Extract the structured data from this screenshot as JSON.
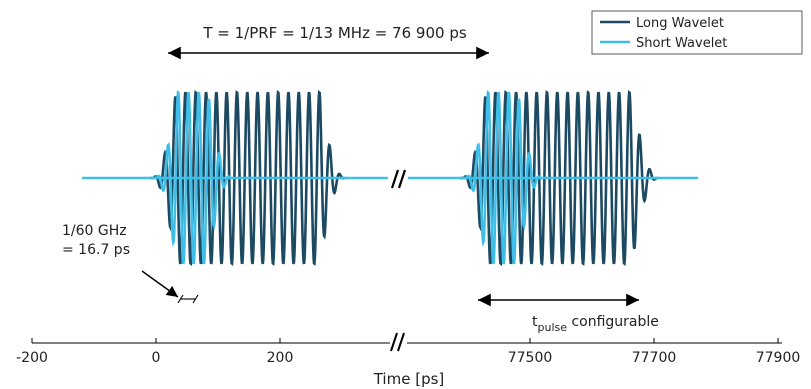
{
  "chart_data": {
    "type": "line",
    "title": "",
    "xlabel": "Time [ps]",
    "ylabel": "",
    "axis_break": "//",
    "x_segments": [
      {
        "range": [
          -200,
          300
        ],
        "ticks": [
          -200,
          0,
          200
        ]
      },
      {
        "range": [
          77300,
          77900
        ],
        "ticks": [
          77500,
          77700,
          77900
        ]
      }
    ],
    "series": [
      {
        "name": "Long Wavelet",
        "color": "#1d4a63",
        "carrier_period_ps": 16.7,
        "pulses_ps": [
          [
            -10,
            300
          ],
          [
            77300,
            77670
          ]
        ]
      },
      {
        "name": "Short Wavelet",
        "color": "#3fbfe8",
        "carrier_period_ps": 16.7,
        "pulses_ps": [
          [
            -10,
            100
          ],
          [
            77300,
            77420
          ]
        ]
      }
    ],
    "annotations": {
      "period": "T = 1/PRF = 1/13 MHz = 76 900 ps",
      "carrier_line1": "1/60 GHz",
      "carrier_line2": "= 16.7 ps",
      "pulse_t": "t",
      "pulse_sub": "pulse",
      "pulse_rest": " configurable"
    },
    "legend_position": "top-right"
  }
}
